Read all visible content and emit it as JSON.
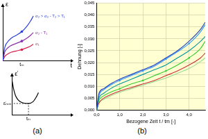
{
  "chart_data": [
    {
      "type": "line",
      "ylabel": "ε",
      "xlabel": "t",
      "x": [
        0,
        0.3,
        0.6,
        1.2,
        2,
        2.8,
        3.5,
        4.1,
        4.5
      ],
      "series": [
        {
          "name": "σ₂ > σ₂ - T₂ > T₁",
          "color": "#2b3fd6",
          "marker": "circle",
          "values": [
            0,
            3,
            4,
            5,
            5.7,
            6.5,
            7.6,
            8.9,
            10
          ]
        },
        {
          "name": "σ₂ - T₁",
          "color": "#8a2fa8",
          "marker": "circle",
          "values": [
            0,
            2,
            2.7,
            3.4,
            3.9,
            4.4,
            5,
            5.7,
            6.3
          ]
        },
        {
          "name": "σ₁",
          "color": "#d6204a",
          "marker": "circle",
          "values": [
            0,
            1,
            1.4,
            1.9,
            2.2,
            2.5,
            2.9,
            3.3,
            3.7
          ]
        }
      ],
      "xlim": [
        0,
        10
      ],
      "ylim": [
        0,
        12
      ],
      "xticks": [
        {
          "value": 2.8,
          "label": "tₘ"
        }
      ],
      "yticks": [],
      "tick_labels": "x",
      "grid": false
    },
    {
      "type": "line",
      "ylabel": "ε̇",
      "x": [
        0,
        0.3,
        0.6,
        1,
        1.6,
        2.8,
        3.6,
        4.1,
        4.5
      ],
      "series": [
        {
          "color": "#000000",
          "marker": "none",
          "values": [
            9,
            6.5,
            5,
            4,
            3.3,
            3,
            3.5,
            4.6,
            5.8
          ]
        }
      ],
      "xlim": [
        0,
        10
      ],
      "ylim": [
        0,
        10
      ],
      "xticks": [
        {
          "value": 2.8,
          "label": "tₘ"
        }
      ],
      "yticks": [
        {
          "value": 3,
          "label": "ε̇ₘᵢₙ"
        }
      ],
      "tick_labels": true,
      "grid": false
    },
    {
      "type": "line",
      "ylabel": "Dehnung [-]",
      "xlabel": "Bezogene Zeit t / tm [-]",
      "x": [
        0,
        0.1,
        0.3,
        0.6,
        1,
        1.5,
        2,
        2.5,
        3,
        3.5,
        4,
        4.5,
        4.7
      ],
      "series": [
        {
          "color": "#1f3fbf",
          "marker": "none",
          "values": [
            0,
            0.007,
            0.009,
            0.011,
            0.013,
            0.015,
            0.017,
            0.019,
            0.022,
            0.025,
            0.029,
            0.034,
            0.037
          ]
        },
        {
          "color": "#3399ff",
          "marker": "circle",
          "values": [
            0,
            0.006,
            0.0085,
            0.0105,
            0.0125,
            0.0145,
            0.0165,
            0.0185,
            0.0215,
            0.0245,
            0.028,
            0.033,
            0.036
          ]
        },
        {
          "color": "#009999",
          "marker": "none",
          "values": [
            0,
            0.005,
            0.007,
            0.009,
            0.011,
            0.013,
            0.015,
            0.017,
            0.019,
            0.022,
            0.025,
            0.029,
            0.031
          ]
        },
        {
          "color": "#33cc33",
          "marker": "circle",
          "values": [
            0,
            0.004,
            0.006,
            0.0075,
            0.009,
            0.011,
            0.0125,
            0.0145,
            0.0165,
            0.019,
            0.022,
            0.026,
            0.029
          ]
        },
        {
          "color": "#cc3333",
          "marker": "none",
          "values": [
            0,
            0.003,
            0.005,
            0.0065,
            0.008,
            0.0095,
            0.011,
            0.0125,
            0.0145,
            0.0165,
            0.019,
            0.022,
            0.024
          ]
        },
        {
          "color": "#99dd99",
          "marker": "none",
          "values": [
            0,
            0.003,
            0.0045,
            0.006,
            0.0075,
            0.009,
            0.0105,
            0.012,
            0.0135,
            0.0155,
            0.0175,
            0.0205,
            0.022
          ]
        }
      ],
      "xlim": [
        0,
        4.7
      ],
      "ylim": [
        0,
        0.045
      ],
      "xticks": [
        {
          "value": 0,
          "label": "0,0"
        },
        {
          "value": 1,
          "label": "1,0"
        },
        {
          "value": 2,
          "label": "2,0"
        },
        {
          "value": 3,
          "label": "3,0"
        },
        {
          "value": 4,
          "label": "4,0"
        }
      ],
      "yticks": [
        {
          "value": 0,
          "label": "0,000"
        },
        {
          "value": 0.005,
          "label": "0,005"
        },
        {
          "value": 0.01,
          "label": "0,010"
        },
        {
          "value": 0.015,
          "label": "0,015"
        },
        {
          "value": 0.02,
          "label": "0,020"
        },
        {
          "value": 0.025,
          "label": "0,025"
        },
        {
          "value": 0.03,
          "label": "0,030"
        },
        {
          "value": 0.035,
          "label": "0,035"
        },
        {
          "value": 0.04,
          "label": "0,040"
        },
        {
          "value": 0.045,
          "label": "0,045"
        }
      ],
      "tick_labels": true,
      "grid": true
    }
  ],
  "captions": [
    "(a)",
    "(b)"
  ]
}
